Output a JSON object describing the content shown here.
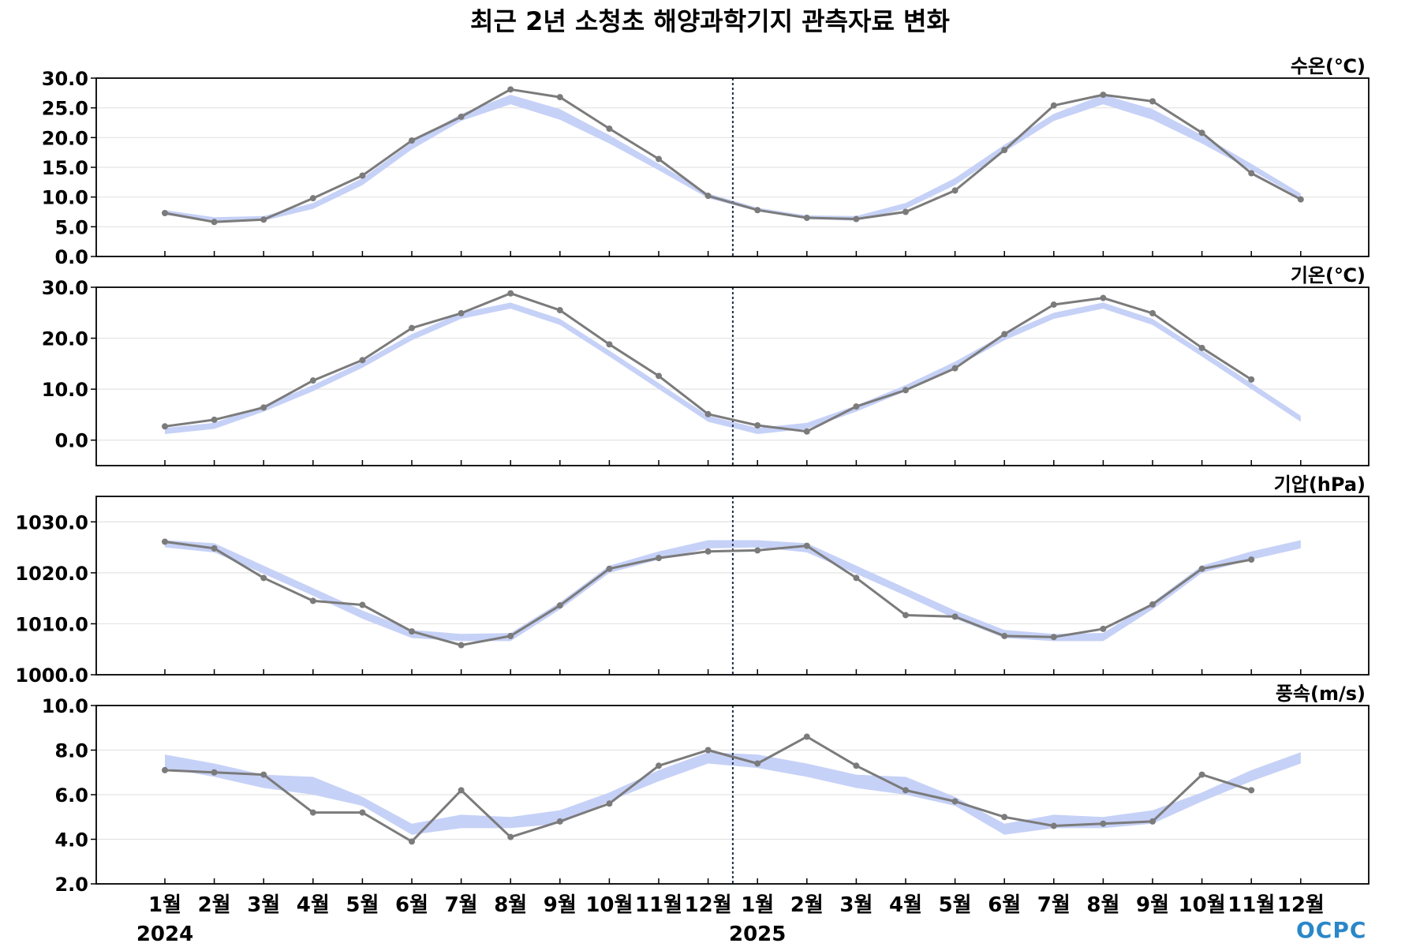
{
  "title": "최근 2년 소청초 해양과학기지 관측자료 변화",
  "logo": "OCPC",
  "colors": {
    "observed_line": "#7b7b7b",
    "climatology_band": "#c6d1f7",
    "grid": "#e3e3e3",
    "year_divider": "#1f2d4d"
  },
  "chart_data": {
    "type": "line",
    "x": [
      "1월",
      "2월",
      "3월",
      "4월",
      "5월",
      "6월",
      "7월",
      "8월",
      "9월",
      "10월",
      "11월",
      "12월",
      "1월",
      "2월",
      "3월",
      "4월",
      "5월",
      "6월",
      "7월",
      "8월",
      "9월",
      "10월",
      "11월",
      "12월"
    ],
    "years": [
      {
        "label": "2024",
        "index": 0
      },
      {
        "label": "2025",
        "index": 12
      }
    ],
    "year_divider_between": [
      11,
      12
    ],
    "legend": "none",
    "grid": true,
    "panels": [
      {
        "unit_label": "수온(℃)",
        "ylim": [
          0,
          30
        ],
        "yticks": [
          0,
          5,
          10,
          15,
          20,
          25,
          30
        ],
        "tick_labels": [
          "0.0",
          "5.0",
          "10.0",
          "15.0",
          "20.0",
          "25.0",
          "30.0"
        ],
        "observed": [
          7.3,
          5.8,
          6.2,
          9.8,
          13.6,
          19.5,
          23.5,
          28.1,
          26.8,
          21.5,
          16.4,
          10.2,
          7.8,
          6.5,
          6.3,
          7.5,
          11.1,
          17.9,
          25.4,
          27.2,
          26.1,
          20.8,
          14.0,
          9.6
        ],
        "band_low": [
          7.0,
          5.9,
          6.0,
          8.0,
          12.0,
          18.0,
          22.8,
          25.6,
          23.0,
          19.0,
          14.5,
          9.8,
          7.6,
          6.3,
          6.0,
          8.0,
          12.0,
          17.6,
          22.8,
          25.6,
          23.0,
          19.0,
          14.5,
          9.8
        ],
        "band_high": [
          7.8,
          6.6,
          6.8,
          9.0,
          13.2,
          19.2,
          24.0,
          27.2,
          24.8,
          20.4,
          15.6,
          10.6,
          8.2,
          6.9,
          6.8,
          9.0,
          13.2,
          18.8,
          24.0,
          27.2,
          24.8,
          20.4,
          15.6,
          10.6
        ]
      },
      {
        "unit_label": "기온(℃)",
        "ylim": [
          -5,
          30
        ],
        "yticks": [
          0,
          10,
          20,
          30
        ],
        "tick_labels": [
          "0.0",
          "10.0",
          "20.0",
          "30.0"
        ],
        "observed": [
          2.7,
          4.0,
          6.4,
          11.7,
          15.7,
          22.0,
          24.9,
          28.8,
          25.5,
          18.8,
          12.6,
          5.1,
          2.9,
          1.7,
          6.6,
          9.8,
          14.1,
          20.8,
          26.6,
          27.9,
          24.9,
          18.1,
          11.9,
          null
        ],
        "band_low": [
          1.2,
          2.2,
          5.6,
          9.6,
          14.2,
          19.6,
          23.8,
          25.8,
          22.6,
          16.4,
          10.0,
          3.6,
          1.2,
          2.2,
          5.6,
          9.6,
          14.2,
          19.6,
          23.8,
          25.8,
          22.6,
          16.4,
          10.0,
          3.6
        ],
        "band_high": [
          2.4,
          3.4,
          6.8,
          10.8,
          15.4,
          20.8,
          25.0,
          27.0,
          23.8,
          17.6,
          11.2,
          4.8,
          2.4,
          3.4,
          6.8,
          10.8,
          15.4,
          20.8,
          25.0,
          27.0,
          23.8,
          17.6,
          11.2,
          4.8
        ]
      },
      {
        "unit_label": "기압(hPa)",
        "ylim": [
          1000,
          1035
        ],
        "yticks": [
          1000,
          1010,
          1020,
          1030
        ],
        "tick_labels": [
          "1000.0",
          "1010.0",
          "1020.0",
          "1030.0"
        ],
        "observed": [
          1026.1,
          1024.8,
          1019.0,
          1014.5,
          1013.7,
          1008.5,
          1005.8,
          1007.6,
          1013.6,
          1020.8,
          1022.9,
          1024.2,
          1024.4,
          1025.3,
          1019.0,
          1011.7,
          1011.4,
          1007.6,
          1007.4,
          1009.0,
          1013.8,
          1020.8,
          1022.6,
          null
        ],
        "band_low": [
          1025.0,
          1024.0,
          1019.8,
          1015.5,
          1011.0,
          1007.2,
          1006.6,
          1006.6,
          1012.8,
          1020.0,
          1022.6,
          1024.8,
          1025.0,
          1024.0,
          1019.8,
          1015.5,
          1011.0,
          1007.2,
          1006.6,
          1006.6,
          1012.8,
          1020.0,
          1022.6,
          1024.8
        ],
        "band_high": [
          1026.4,
          1025.8,
          1021.4,
          1017.0,
          1012.6,
          1008.8,
          1008.0,
          1008.2,
          1014.2,
          1021.4,
          1024.2,
          1026.4,
          1026.4,
          1025.8,
          1021.4,
          1017.0,
          1012.6,
          1008.8,
          1008.0,
          1008.2,
          1014.2,
          1021.4,
          1024.2,
          1026.4
        ]
      },
      {
        "unit_label": "풍속(m/s)",
        "ylim": [
          2,
          10
        ],
        "yticks": [
          2,
          4,
          6,
          8,
          10
        ],
        "tick_labels": [
          "2.0",
          "4.0",
          "6.0",
          "8.0",
          "10.0"
        ],
        "observed": [
          7.1,
          7.0,
          6.9,
          5.2,
          5.2,
          3.9,
          6.2,
          4.1,
          4.8,
          5.6,
          7.3,
          8.0,
          7.4,
          8.6,
          7.3,
          6.2,
          5.7,
          5.0,
          4.6,
          4.7,
          4.8,
          6.9,
          6.2,
          null
        ],
        "band_low": [
          7.2,
          6.8,
          6.3,
          6.0,
          5.5,
          4.2,
          4.5,
          4.5,
          4.7,
          5.7,
          6.6,
          7.4,
          7.2,
          6.8,
          6.3,
          6.0,
          5.5,
          4.2,
          4.5,
          4.5,
          4.7,
          5.7,
          6.6,
          7.4
        ],
        "band_high": [
          7.8,
          7.4,
          6.9,
          6.8,
          5.9,
          4.7,
          5.1,
          5.0,
          5.3,
          6.1,
          7.1,
          7.9,
          7.8,
          7.4,
          6.9,
          6.8,
          5.9,
          4.7,
          5.1,
          5.0,
          5.3,
          6.1,
          7.1,
          7.9
        ]
      }
    ]
  }
}
